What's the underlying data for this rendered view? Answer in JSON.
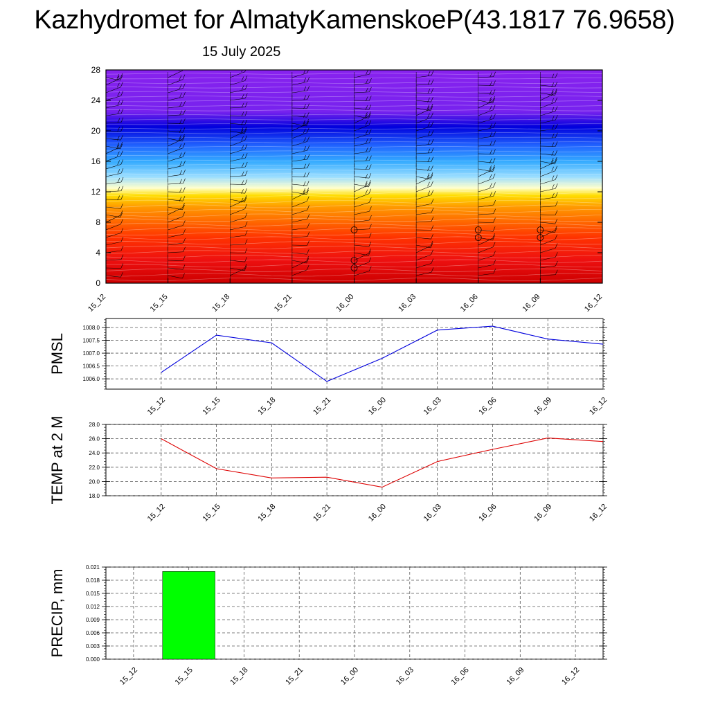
{
  "title": "Kazhydromet for AlmatyKamenskoeP(43.1817 76.9658)",
  "subtitle": "15 July 2025",
  "colors": {
    "pmsl_line": "#0000dd",
    "temp_line": "#dd0000",
    "precip_bar": "#00ff00",
    "grid": "#555555"
  },
  "chart_data": [
    {
      "type": "heatmap",
      "title": "",
      "xlabel": "",
      "ylabel": "",
      "categories": [
        "15_12",
        "15_15",
        "15_18",
        "15_21",
        "16_00",
        "16_03",
        "16_06",
        "16_09",
        "16_12"
      ],
      "ylim": [
        0,
        28
      ],
      "yticks": [
        0,
        4,
        8,
        12,
        16,
        20,
        24,
        28
      ],
      "grid": false,
      "colorbands": [
        {
          "y": 0,
          "color": "#cc0000"
        },
        {
          "y": 3,
          "color": "#ee1010"
        },
        {
          "y": 6,
          "color": "#ff3300"
        },
        {
          "y": 8,
          "color": "#ff6600"
        },
        {
          "y": 10,
          "color": "#ff9900"
        },
        {
          "y": 11.5,
          "color": "#ffdd00"
        },
        {
          "y": 12.5,
          "color": "#ffffcc"
        },
        {
          "y": 14,
          "color": "#99ddff"
        },
        {
          "y": 16,
          "color": "#33aaff"
        },
        {
          "y": 18,
          "color": "#2266ff"
        },
        {
          "y": 20.5,
          "color": "#0000dd"
        },
        {
          "y": 22.5,
          "color": "#7722ee"
        },
        {
          "y": 28,
          "color": "#8822ee"
        }
      ],
      "calm_markers": [
        {
          "x": "16_00",
          "y": 7
        },
        {
          "x": "16_00",
          "y": 3
        },
        {
          "x": "16_00",
          "y": 2
        },
        {
          "x": "16_06",
          "y": 7
        },
        {
          "x": "16_06",
          "y": 6
        },
        {
          "x": "16_09",
          "y": 7
        },
        {
          "x": "16_09",
          "y": 6
        }
      ]
    },
    {
      "type": "line",
      "title": "",
      "xlabel": "",
      "ylabel": "PMSL",
      "categories": [
        "15_12",
        "15_15",
        "15_18",
        "15_21",
        "16_00",
        "16_03",
        "16_06",
        "16_09",
        "16_12"
      ],
      "series": [
        {
          "values": [
            1006.25,
            1007.7,
            1007.4,
            1005.9,
            1006.8,
            1007.9,
            1008.05,
            1007.55,
            1007.35
          ]
        }
      ],
      "ylim": [
        1005.6,
        1008.35
      ],
      "yticks": [
        "1006.0",
        "1006.5",
        "1007.0",
        "1007.5",
        "1008.0"
      ],
      "grid": true
    },
    {
      "type": "line",
      "title": "",
      "xlabel": "",
      "ylabel": "TEMP at 2 M",
      "categories": [
        "15_12",
        "15_15",
        "15_18",
        "15_21",
        "16_00",
        "16_03",
        "16_06",
        "16_09",
        "16_12"
      ],
      "series": [
        {
          "values": [
            26.0,
            21.8,
            20.5,
            20.6,
            19.2,
            22.8,
            24.5,
            26.1,
            25.6
          ]
        }
      ],
      "ylim": [
        18.0,
        28.0
      ],
      "yticks": [
        "18.0",
        "20.0",
        "22.0",
        "24.0",
        "26.0",
        "28.0"
      ],
      "grid": true
    },
    {
      "type": "bar",
      "title": "",
      "xlabel": "",
      "ylabel": "PRECIP, mm",
      "categories": [
        "15_12",
        "15_15",
        "15_18",
        "15_21",
        "16_00",
        "16_03",
        "16_06",
        "16_09",
        "16_12"
      ],
      "values": [
        0,
        0.02,
        0,
        0,
        0,
        0,
        0,
        0,
        0
      ],
      "ylim": [
        0,
        0.021
      ],
      "yticks": [
        "0.000",
        "0.003",
        "0.006",
        "0.009",
        "0.012",
        "0.015",
        "0.018",
        "0.021"
      ],
      "grid": true
    }
  ]
}
